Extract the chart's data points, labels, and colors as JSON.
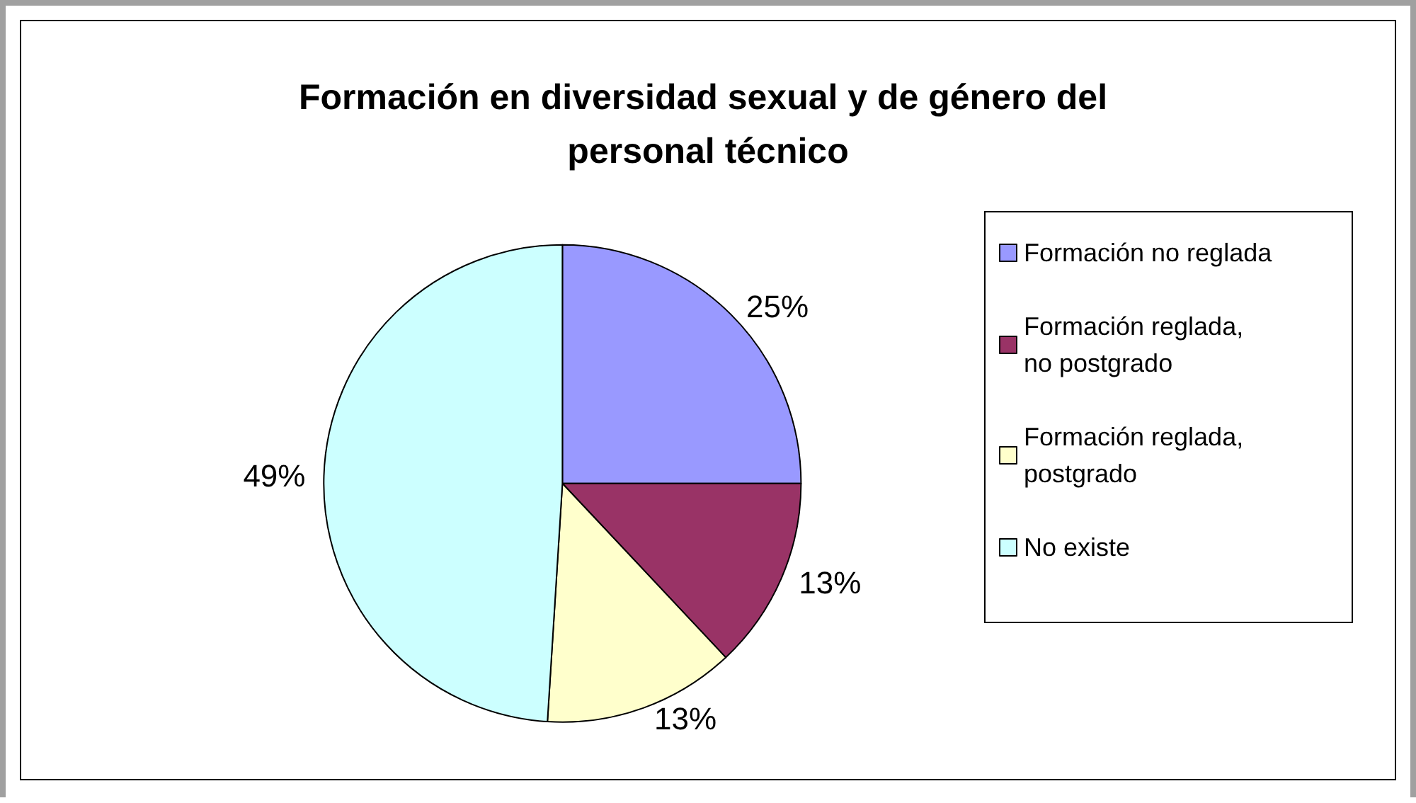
{
  "chart_data": {
    "type": "pie",
    "title": "Formación en diversidad sexual y de género del personal técnico",
    "categories": [
      "Formación no reglada",
      "Formación reglada, no postgrado",
      "Formación reglada, postgrado",
      "No existe"
    ],
    "values": [
      25,
      13,
      13,
      49
    ],
    "colors": [
      "#9999ff",
      "#993366",
      "#ffffcc",
      "#ccffff"
    ],
    "value_labels": [
      "25%",
      "13%",
      "13%",
      "49%"
    ],
    "legend": "right"
  }
}
